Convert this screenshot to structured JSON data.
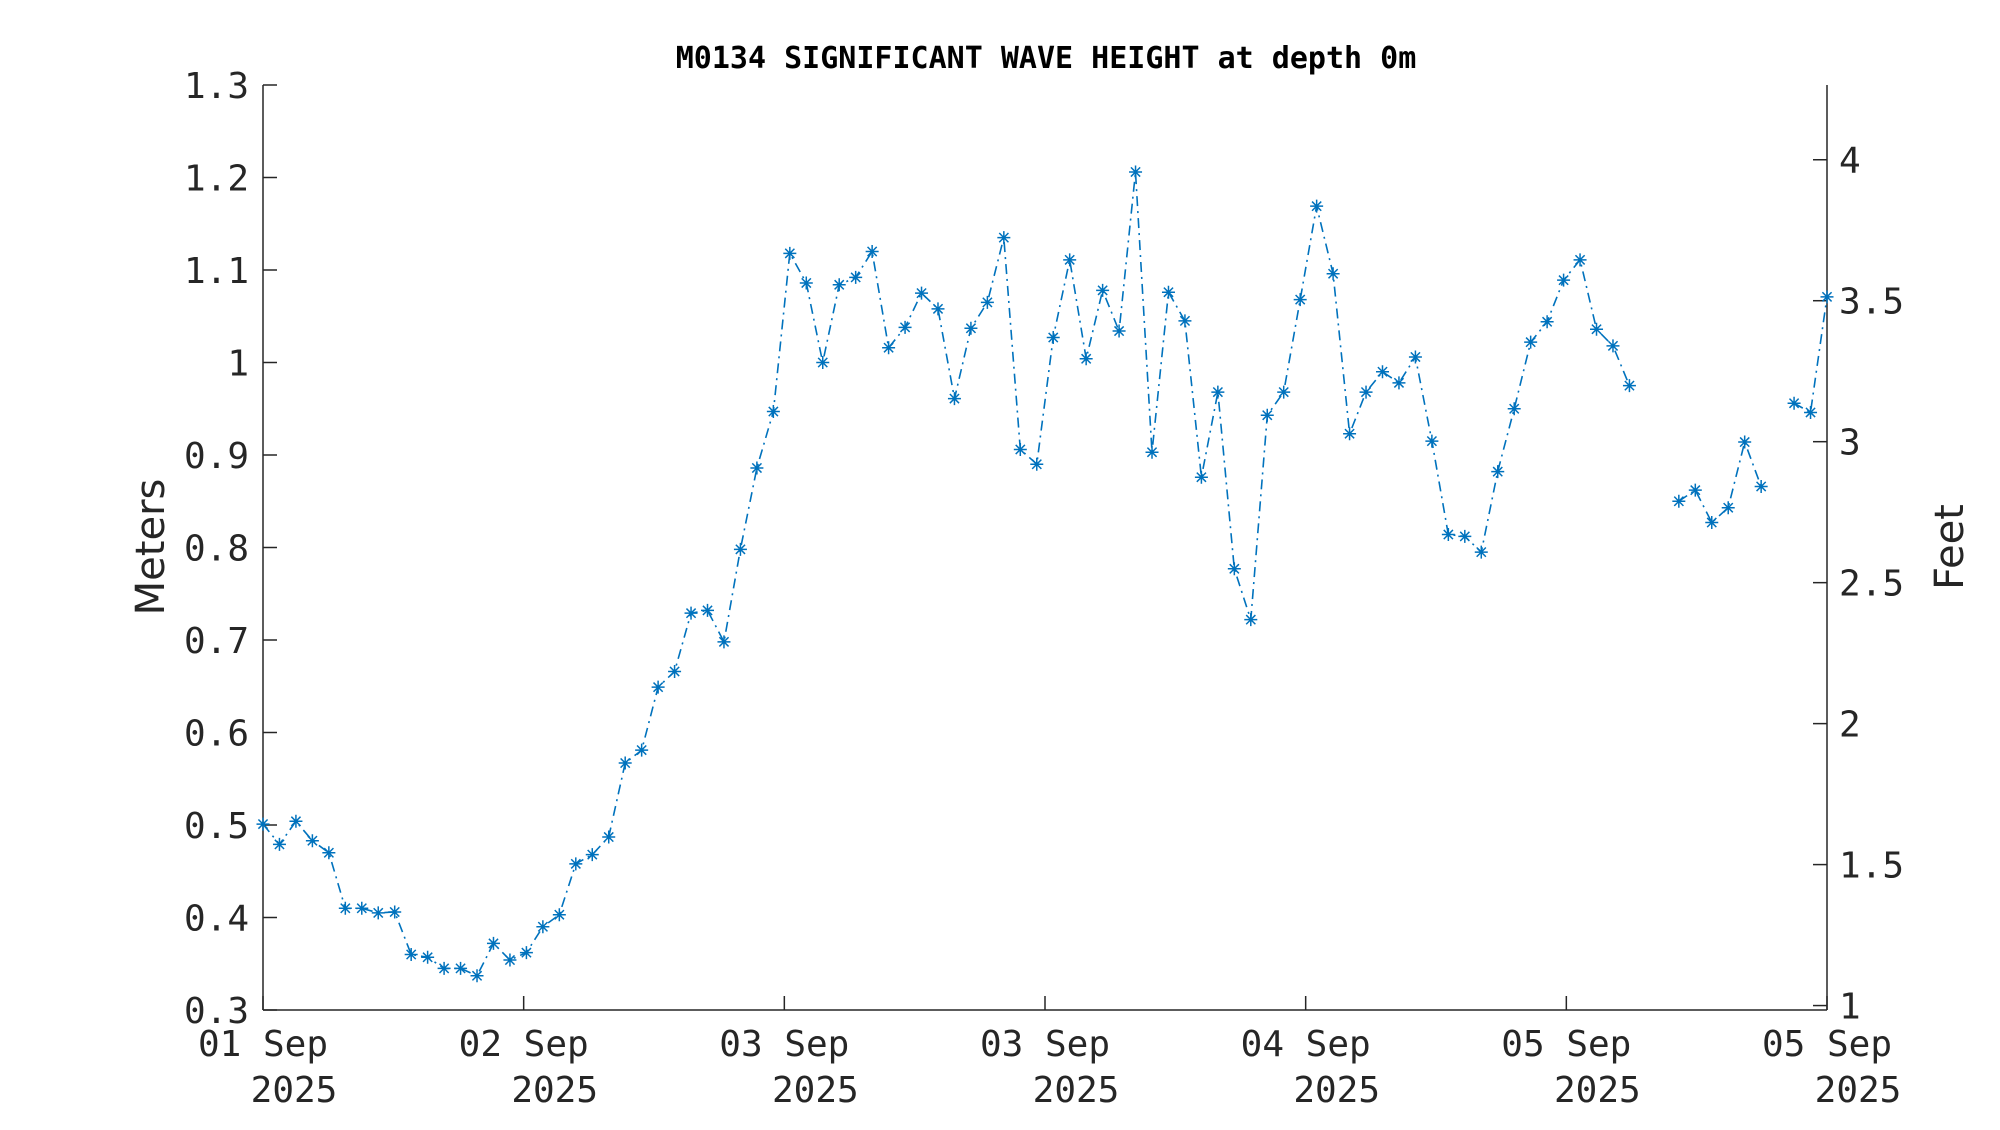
{
  "chart_data": {
    "type": "line",
    "title": "M0134 SIGNIFICANT WAVE HEIGHT at depth 0m",
    "ylabel": "Meters",
    "ylabel_right": "Feet",
    "ylim": [
      0.3,
      1.3
    ],
    "yticks": [
      "0.3",
      "0.4",
      "0.5",
      "0.6",
      "0.7",
      "0.8",
      "0.9",
      "1",
      "1.1",
      "1.2",
      "1.3"
    ],
    "y2ticks": [
      "1",
      "1.5",
      "2",
      "2.5",
      "3",
      "3.5",
      "4"
    ],
    "xticks": [
      {
        "day": "01 Sep",
        "year": "2025"
      },
      {
        "day": "02 Sep",
        "year": "2025"
      },
      {
        "day": "03 Sep",
        "year": "2025"
      },
      {
        "day": "03 Sep",
        "year": "2025"
      },
      {
        "day": "04 Sep",
        "year": "2025"
      },
      {
        "day": "05 Sep",
        "year": "2025"
      },
      {
        "day": "05 Sep",
        "year": "2025"
      }
    ],
    "grid": false,
    "line_color": "#0072BD",
    "line_style": "dash-dot",
    "marker": "asterisk",
    "series": [
      {
        "values": [
          0.501,
          0.479,
          0.504,
          0.483,
          0.47,
          0.41,
          0.41,
          0.405,
          0.406,
          0.36,
          0.357,
          0.345,
          0.345,
          0.337,
          0.372,
          0.354,
          0.362,
          0.39,
          0.403,
          0.458,
          0.468,
          0.487,
          0.567,
          0.581,
          0.649,
          0.666,
          0.729,
          0.732,
          0.698,
          0.798,
          0.886,
          0.947,
          1.118,
          1.086,
          1.0,
          1.084,
          1.092,
          1.12,
          1.016,
          1.038,
          1.075,
          1.058,
          0.961,
          1.037,
          1.065,
          1.135,
          0.906,
          0.89,
          1.027,
          1.111,
          1.004,
          1.078,
          1.034,
          1.206,
          0.903,
          1.076,
          1.045,
          0.876,
          0.968,
          0.777,
          0.722,
          0.943,
          0.968,
          1.068,
          1.169,
          1.096,
          0.923,
          0.968,
          0.99,
          0.978,
          1.006,
          0.915,
          0.814,
          0.812,
          0.795,
          0.882,
          0.95,
          1.022,
          1.044,
          1.089,
          1.111,
          1.036,
          1.018,
          0.975,
          null,
          null,
          0.85,
          0.862,
          0.827,
          0.843,
          0.914,
          0.866,
          null,
          0.956,
          0.946,
          1.071
        ]
      }
    ]
  }
}
